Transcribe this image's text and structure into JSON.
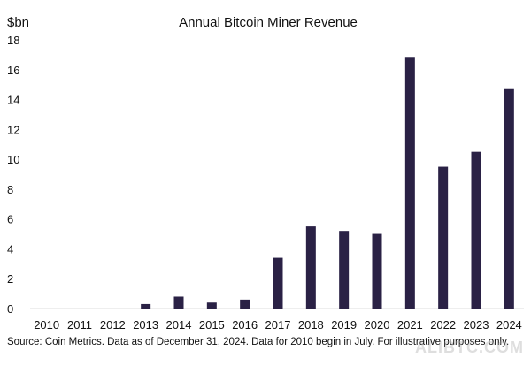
{
  "chart_data": {
    "type": "bar",
    "title": "Annual Bitcoin Miner Revenue",
    "ylabel": "$bn",
    "xlabel": "",
    "ylim": [
      0,
      18
    ],
    "yticks": [
      0,
      2,
      4,
      6,
      8,
      10,
      12,
      14,
      16,
      18
    ],
    "categories": [
      "2010",
      "2011",
      "2012",
      "2013",
      "2014",
      "2015",
      "2016",
      "2017",
      "2018",
      "2019",
      "2020",
      "2021",
      "2022",
      "2023",
      "2024"
    ],
    "values": [
      0,
      0,
      0,
      0.3,
      0.8,
      0.4,
      0.6,
      3.4,
      5.5,
      5.2,
      5.0,
      16.8,
      9.5,
      10.5,
      14.7
    ],
    "bar_color": "#2a2145",
    "grid": false,
    "legend": "none"
  },
  "source_note": "Source: Coin Metrics. Data as of December 31, 2024. Data for 2010 begin in July. For illustrative purposes only.",
  "watermark": "ALIBTC.COM"
}
